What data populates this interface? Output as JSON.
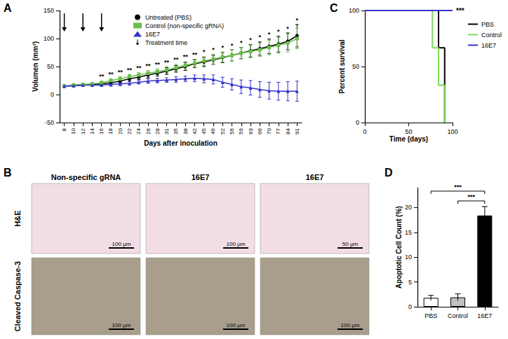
{
  "chart_data": [
    {
      "panel": "A",
      "type": "line",
      "x_label": "Days after inoculation",
      "y_label": "Volumen (mm³)",
      "categories": [
        8,
        10,
        12,
        14,
        16,
        18,
        20,
        22,
        24,
        26,
        28,
        31,
        35,
        38,
        42,
        45,
        49,
        52,
        56,
        59,
        63,
        66,
        70,
        77,
        84,
        91
      ],
      "ylim": [
        -50,
        150
      ],
      "yticks": [
        -50,
        0,
        50,
        100,
        150
      ],
      "legend": "upper left",
      "series": [
        {
          "name": "Untreated (PBS)",
          "color": "#000000",
          "marker": "circle",
          "values": [
            15,
            16,
            17,
            18,
            19,
            21,
            24,
            28,
            31,
            35,
            38,
            42,
            46,
            50,
            55,
            58,
            62,
            66,
            70,
            74,
            78,
            82,
            86,
            90,
            95,
            105
          ],
          "errors": [
            2,
            2,
            2,
            2,
            2,
            3,
            3,
            4,
            4,
            5,
            5,
            6,
            6,
            7,
            7,
            8,
            8,
            9,
            10,
            10,
            11,
            12,
            13,
            14,
            15,
            20
          ]
        },
        {
          "name": "Control (non-specific gRNA)",
          "color": "#6abf4b",
          "marker": "square",
          "values": [
            15,
            17,
            18,
            19,
            21,
            25,
            28,
            32,
            35,
            38,
            41,
            44,
            48,
            52,
            56,
            60,
            63,
            67,
            70,
            74,
            77,
            80,
            84,
            88,
            92,
            100
          ],
          "errors": [
            2,
            2,
            2,
            2,
            3,
            3,
            4,
            4,
            4,
            5,
            5,
            6,
            6,
            7,
            7,
            8,
            9,
            9,
            10,
            10,
            11,
            12,
            13,
            14,
            16,
            18
          ]
        },
        {
          "name": "16E7",
          "color": "#3333cc",
          "marker": "triangle",
          "values": [
            15,
            16,
            17,
            17,
            17,
            18,
            19,
            20,
            22,
            24,
            25,
            26,
            27,
            28,
            29,
            28,
            27,
            22,
            18,
            14,
            12,
            9,
            7,
            6,
            6,
            6
          ],
          "errors": [
            2,
            2,
            2,
            2,
            2,
            3,
            3,
            3,
            3,
            4,
            4,
            4,
            5,
            5,
            6,
            7,
            8,
            9,
            10,
            12,
            13,
            14,
            15,
            16,
            17,
            18
          ]
        }
      ],
      "significance": [
        null,
        null,
        null,
        null,
        "**",
        "**",
        "**",
        "**",
        "**",
        "**",
        "**",
        "**",
        "**",
        "**",
        "**",
        "*",
        "*",
        "*",
        "*",
        "*",
        "*",
        "*",
        "*",
        "*",
        "*",
        "*"
      ],
      "annotations": [
        {
          "label": "Treatment time",
          "x": [
            8,
            12,
            16
          ]
        }
      ]
    },
    {
      "panel": "C",
      "type": "line",
      "line_style": "step",
      "x_label": "Time (days)",
      "y_label": "Percent survival",
      "xlim": [
        0,
        100
      ],
      "xticks": [
        0,
        50,
        100
      ],
      "ylim": [
        0,
        100
      ],
      "yticks": [
        0,
        50,
        100
      ],
      "legend": "right",
      "series": [
        {
          "name": "PBS",
          "color": "#000000",
          "x": [
            0,
            84,
            91
          ],
          "values": [
            100,
            66.7,
            0
          ]
        },
        {
          "name": "Control",
          "color": "#7fd85a",
          "x": [
            0,
            77,
            84,
            91
          ],
          "values": [
            100,
            66.7,
            33.3,
            0
          ]
        },
        {
          "name": "16E7",
          "color": "#3333cc",
          "x": [
            0,
            100
          ],
          "values": [
            100,
            100
          ],
          "significance": "***"
        }
      ]
    },
    {
      "panel": "D",
      "type": "bar",
      "y_label": "Apoptotic Cell Count (%)",
      "categories": [
        "PBS",
        "Control",
        "16E7"
      ],
      "values": [
        1.8,
        1.9,
        18.4
      ],
      "errors": [
        0.5,
        0.7,
        1.8
      ],
      "colors": [
        "#ffffff",
        "#bfbfbf",
        "#000000"
      ],
      "ylim": [
        0,
        24
      ],
      "yticks": [
        0,
        5,
        10,
        15,
        20
      ],
      "significance": [
        {
          "from": "PBS",
          "to": "16E7",
          "label": "***"
        },
        {
          "from": "Control",
          "to": "16E7",
          "label": "***"
        }
      ]
    }
  ],
  "panel_b": {
    "panel": "B",
    "columns": [
      "Non-specific gRNA",
      "16E7",
      "16E7"
    ],
    "rows": [
      {
        "label": "H&E",
        "color": "#f2dde6",
        "scale_bars": [
          "100 µm",
          "100 µm",
          "50 µm"
        ]
      },
      {
        "label": "Cleaved Caspase-3",
        "color": "#a99e8c",
        "scale_bars": [
          "100 µm",
          "100 µm",
          "100 µm"
        ]
      }
    ]
  }
}
